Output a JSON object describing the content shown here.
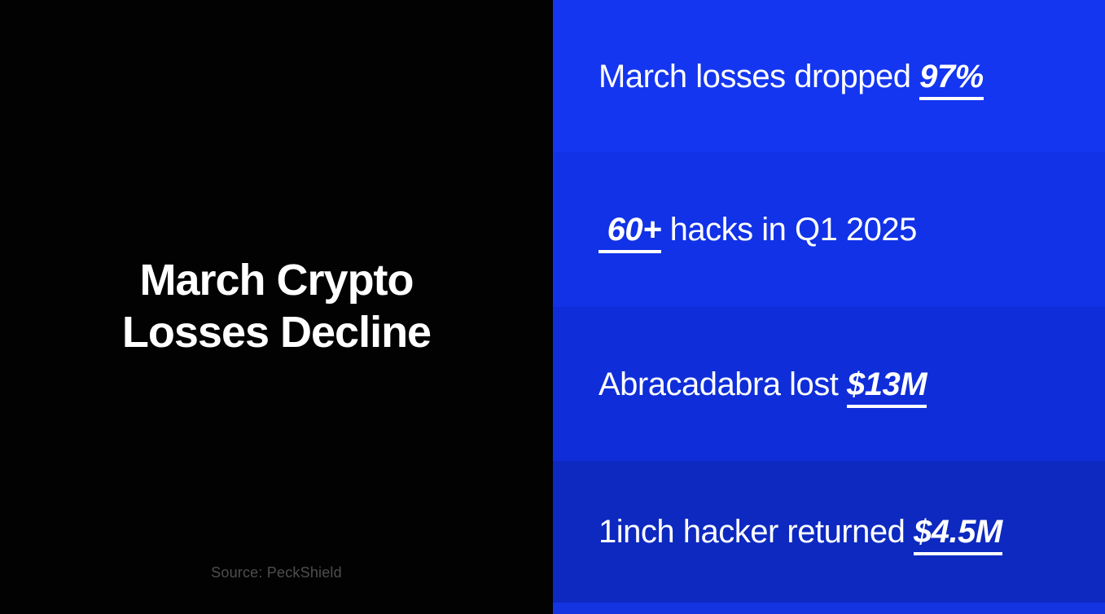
{
  "left_panel": {
    "title_line1": "March Crypto",
    "title_line2": "Losses Decline",
    "source": "Source: PeckShield",
    "background": "#020203",
    "title_color": "#ffffff",
    "source_color": "#4e4e4e"
  },
  "right_panel": {
    "text_color": "#ffffff",
    "rows": [
      {
        "prefix": "March losses dropped ",
        "highlight": "97%",
        "suffix": "",
        "background": "#1436f0"
      },
      {
        "prefix": "",
        "highlight": " 60+",
        "suffix": " hacks in Q1 2025",
        "background": "#1132e6"
      },
      {
        "prefix": "Abracadabra lost ",
        "highlight": "$13M",
        "suffix": "",
        "background": "#0f2ed9"
      },
      {
        "prefix": "1inch hacker returned ",
        "highlight": "$4.5M",
        "suffix": "",
        "background": "#0d29c0"
      }
    ],
    "partial_row_background": "#1434e2"
  }
}
